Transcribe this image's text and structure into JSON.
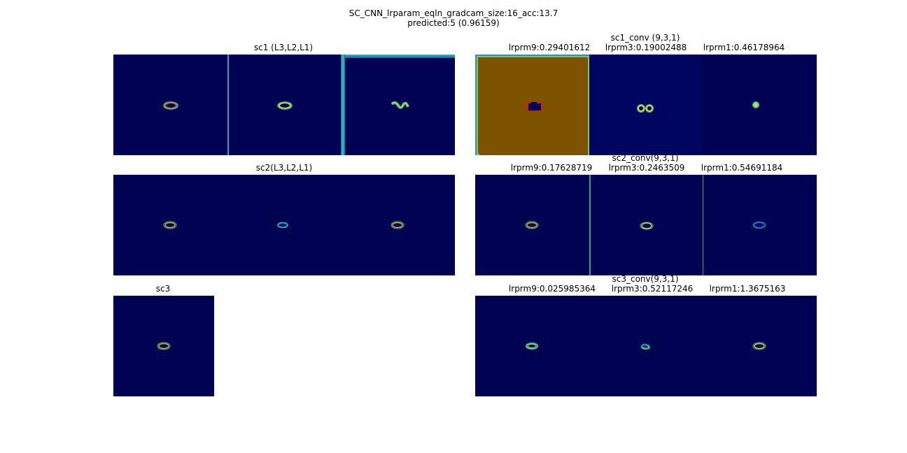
{
  "figure": {
    "title_line1": "SC_CNN_lrparam_eqln_gradcam_size:16_acc:13.7",
    "title_line2": "predicted:5 (0.96159)"
  },
  "colors": {
    "background": "#000352",
    "heat_high": "#e65a1a",
    "heat_mid": "#f0d030",
    "heat_low": "#2ecf9a",
    "heat_cold": "#1248c8",
    "orange_fill": "#7d5300",
    "blue_fill": "#00035a"
  },
  "panels": {
    "sc1": {
      "title": "sc1 (L3,L2,L1)"
    },
    "sc2": {
      "title": "sc2(L3,L2,L1)"
    },
    "sc3": {
      "title": "sc3"
    },
    "sc1_conv": {
      "title": "sc1_conv (9,3,1)",
      "labels": [
        "lrprm9:0.29401612",
        "lrprm3:0.19002488",
        "lrprm1:0.46178964"
      ]
    },
    "sc2_conv": {
      "title": "sc2_conv(9,3,1)",
      "labels": [
        "lrprm9:0.17628719",
        "lrprm3:0.2463509",
        "lrprm1:0.54691184"
      ]
    },
    "sc3_conv": {
      "title": "sc3_conv(9,3,1)",
      "labels": [
        "lrprm9:0.025985364",
        "lrprm3:0.52117246",
        "lrprm1:1.3675163"
      ]
    }
  },
  "chart_data": {
    "type": "heatmap",
    "colormap": "jet",
    "panels": [
      "sc1",
      "sc2",
      "sc3",
      "sc1_conv",
      "sc2_conv",
      "sc3_conv"
    ]
  }
}
